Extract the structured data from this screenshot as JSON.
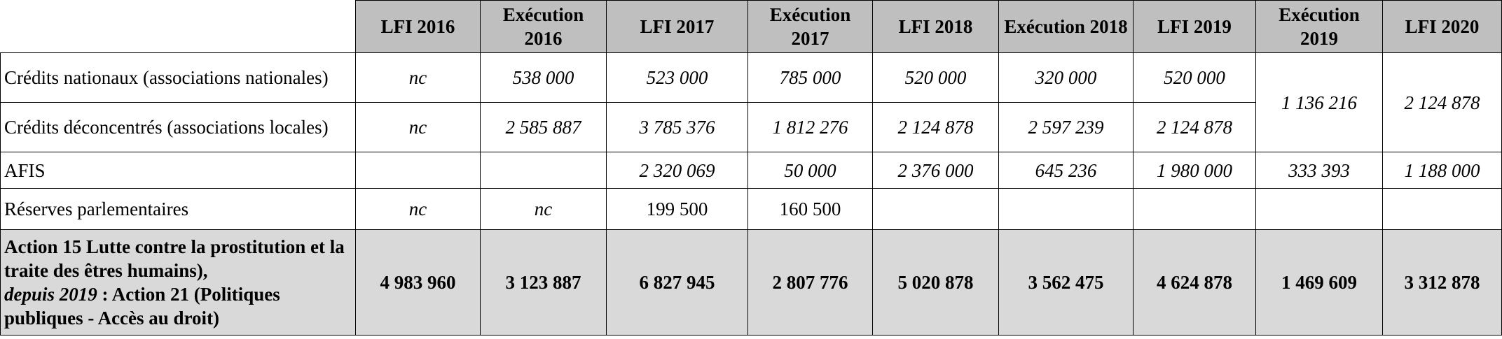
{
  "headers": [
    "LFI  2016",
    "Exécution 2016",
    "LFI  2017",
    "Exécution 2017",
    "LFI 2018",
    "Exécution 2018",
    "LFI 2019",
    "Exécution 2019",
    "LFI 2020"
  ],
  "rows": {
    "nationaux": {
      "label": "Crédits nationaux (associations nationales)",
      "values": [
        "nc",
        "538 000",
        "523 000",
        "785 000",
        "520 000",
        "320 000",
        "520 000"
      ]
    },
    "deconcentres": {
      "label": "Crédits déconcentrés (associations locales)",
      "values": [
        "nc",
        "2 585 887",
        "3 785 376",
        "1 812 276",
        "2 124 878",
        "2 597 239",
        "2 124 878"
      ]
    },
    "merged": {
      "execution_2019": "1 136 216",
      "lfi_2020": "2 124 878"
    },
    "afis": {
      "label": "AFIS",
      "values": [
        "",
        "",
        "2 320 069",
        "50 000",
        "2 376 000",
        "645 236",
        "1 980 000",
        "333 393",
        "1 188 000"
      ]
    },
    "reserves": {
      "label": "Réserves parlementaires",
      "values": [
        "nc",
        "nc",
        "199 500",
        "160 500",
        "",
        "",
        "",
        "",
        ""
      ]
    },
    "total": {
      "label_bold": "Action 15  Lutte contre la prostitution et la traite des êtres humains),",
      "label_italic": "depuis 2019",
      "label_rest": " : Action 21 (Politiques publiques - Accès au droit)",
      "values": [
        "4 983 960",
        "3 123 887",
        "6 827 945",
        "2 807 776",
        "5 020 878",
        "3 562 475",
        "4 624 878",
        "1 469 609",
        "3 312 878"
      ]
    }
  }
}
